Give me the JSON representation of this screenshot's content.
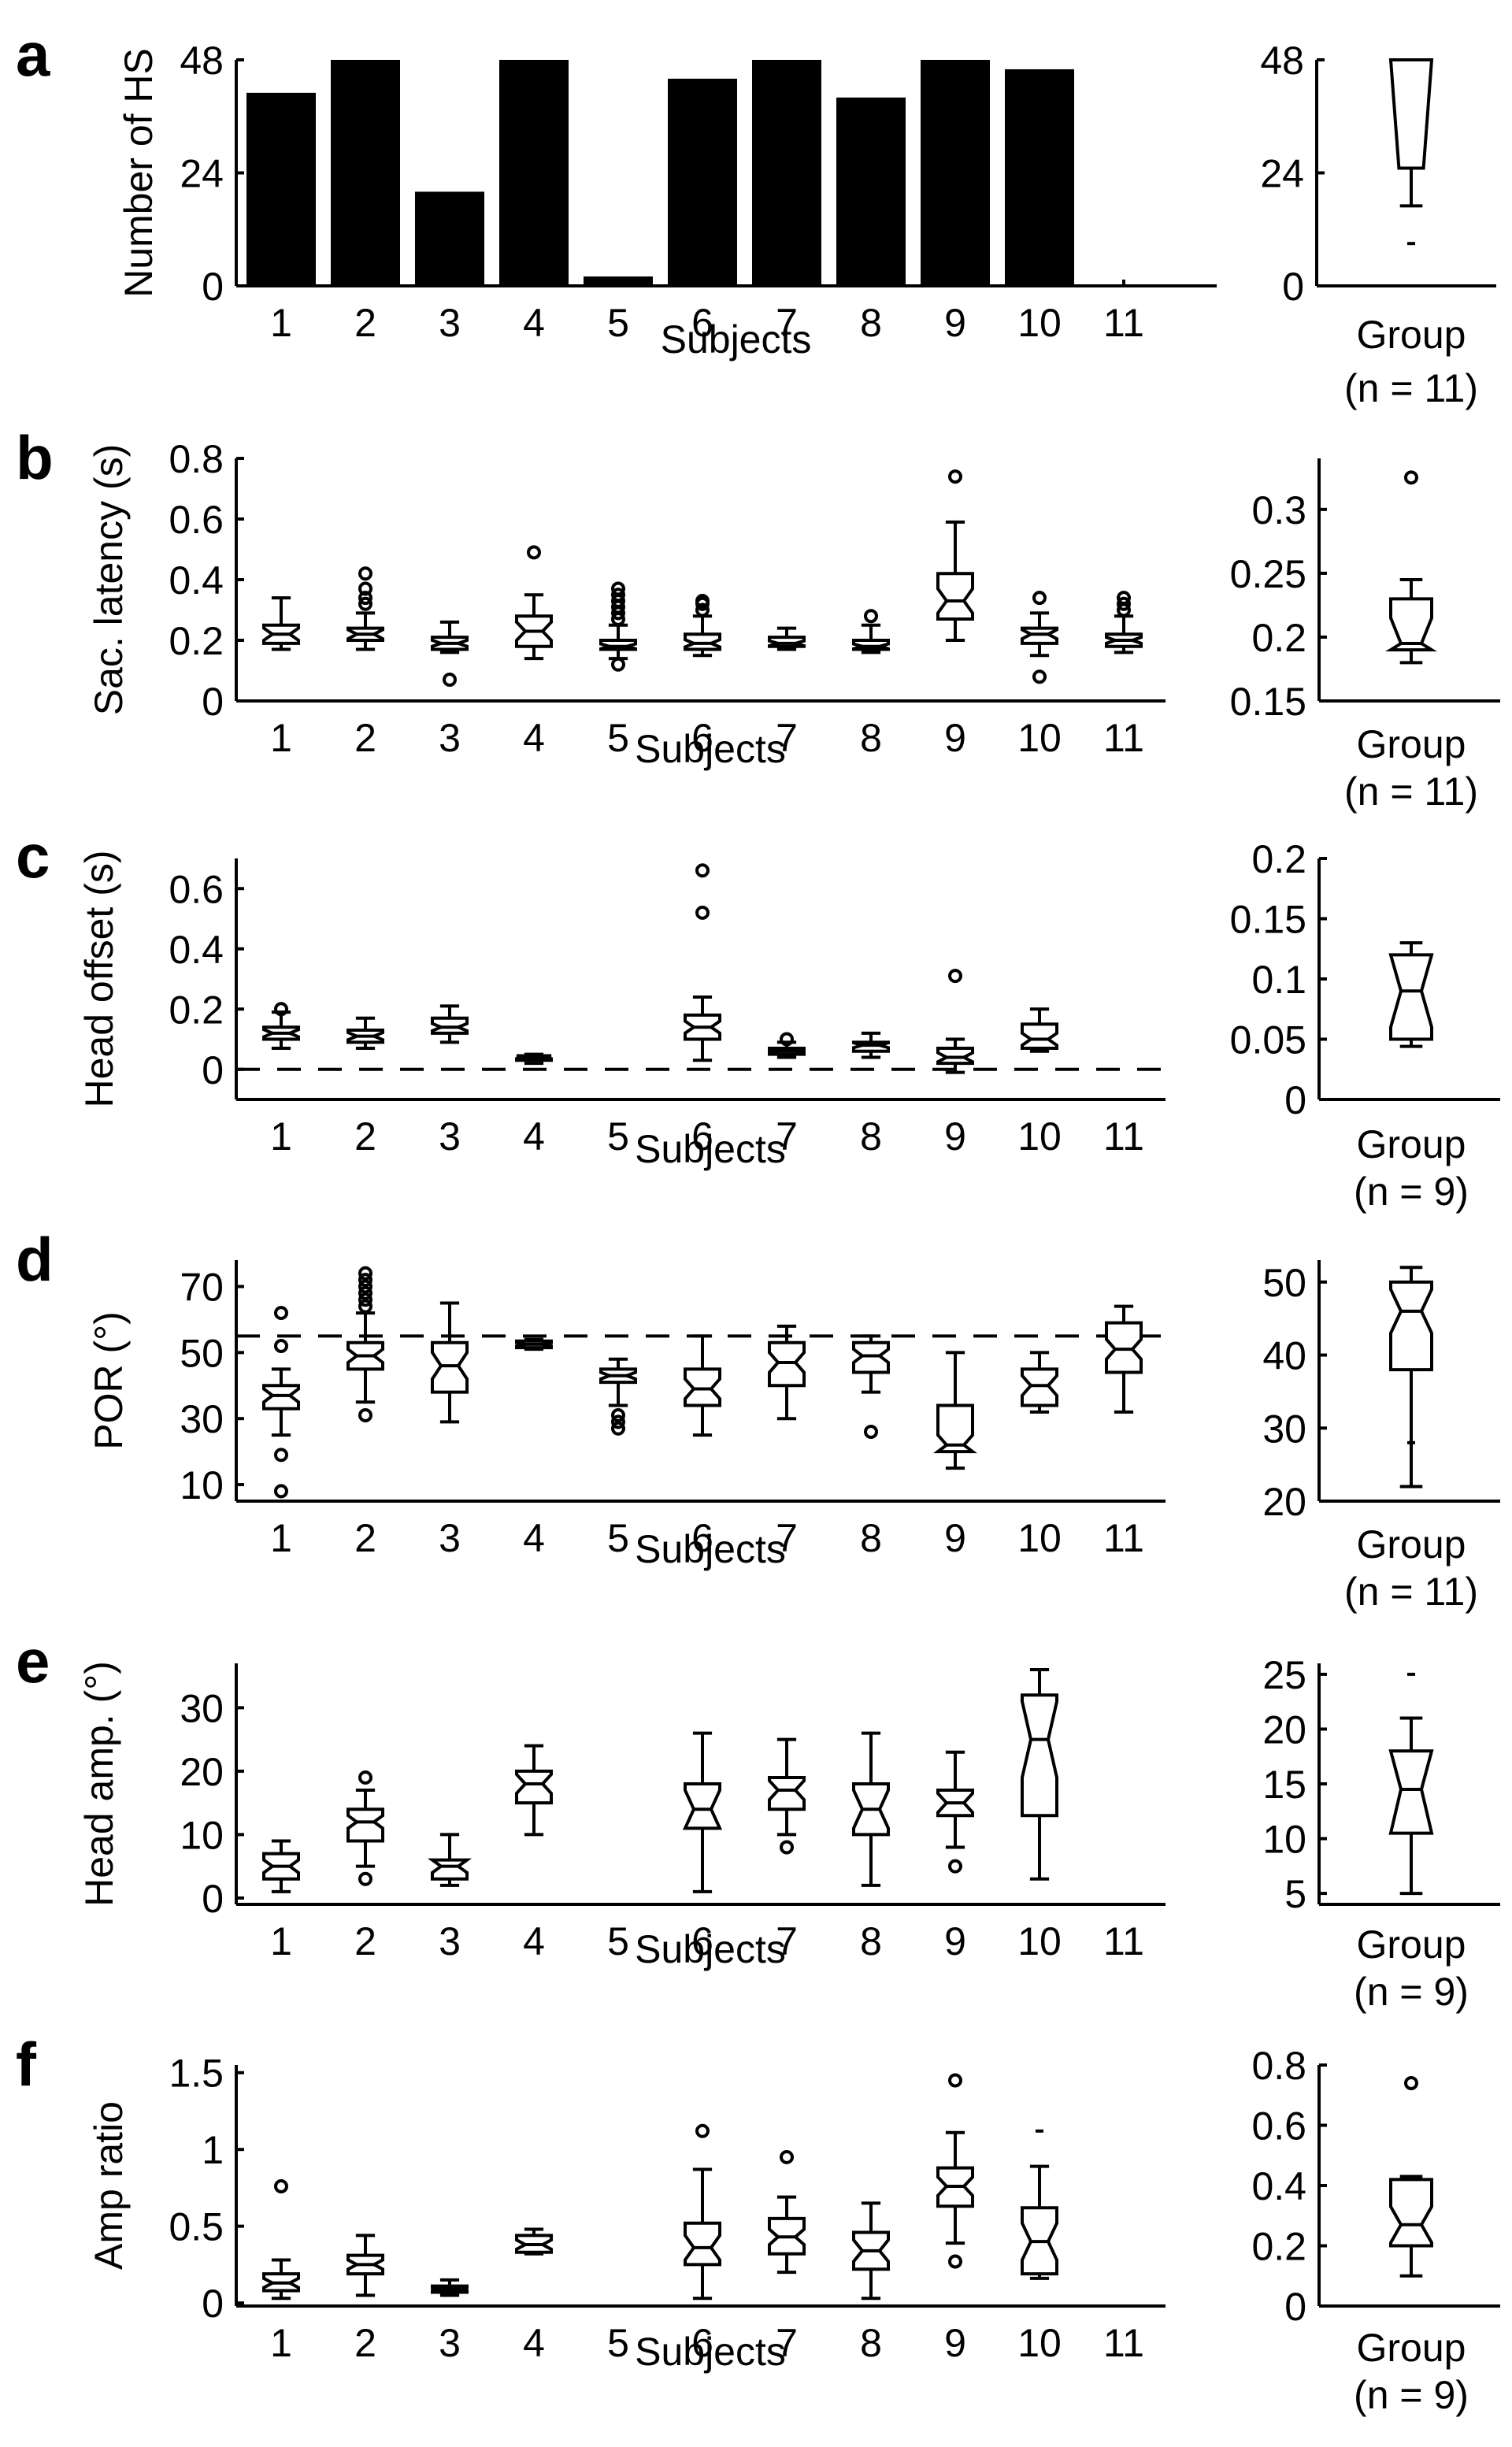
{
  "chart_data": [
    {
      "id": "a",
      "panel_label": "a",
      "type": "bar",
      "ylabel": "Number of HS",
      "xlabel": "Subjects",
      "ylim": [
        0,
        48
      ],
      "yticks": [
        0,
        24,
        48
      ],
      "ytick_labels": [
        "0",
        "24",
        "48"
      ],
      "categories": [
        "1",
        "2",
        "3",
        "4",
        "5",
        "6",
        "7",
        "8",
        "9",
        "10",
        "11"
      ],
      "values": [
        41,
        48,
        20,
        48,
        2,
        44,
        48,
        40,
        48,
        46,
        0
      ],
      "group": {
        "type": "boxplot",
        "xlabel": "Group",
        "n_label": "(n = 11)",
        "ylim": [
          0,
          48
        ],
        "yticks": [
          0,
          24,
          48
        ],
        "ytick_labels": [
          "0",
          "24",
          "48"
        ],
        "notched": false,
        "box": {
          "low": 0,
          "q1": 25,
          "median": 46,
          "q3": 48,
          "high": 48,
          "wlo": 17,
          "whi": 48,
          "outliers": [],
          "minlines": [
            0,
            9
          ]
        }
      }
    },
    {
      "id": "b",
      "panel_label": "b",
      "type": "boxplot",
      "ylabel": "Sac. latency (s)",
      "xlabel": "Subjects",
      "ylim": [
        0,
        0.8
      ],
      "yticks": [
        0,
        0.2,
        0.4,
        0.6,
        0.8
      ],
      "ytick_labels": [
        "0",
        "0.2",
        "0.4",
        "0.6",
        "0.8"
      ],
      "categories": [
        "1",
        "2",
        "3",
        "4",
        "5",
        "6",
        "7",
        "8",
        "9",
        "10",
        "11"
      ],
      "boxes": [
        {
          "wlo": 0.17,
          "q1": 0.19,
          "median": 0.22,
          "q3": 0.25,
          "whi": 0.34,
          "notch": 0.02,
          "outliers": []
        },
        {
          "wlo": 0.17,
          "q1": 0.2,
          "median": 0.22,
          "q3": 0.24,
          "whi": 0.29,
          "notch": 0.015,
          "outliers": [
            0.32,
            0.34,
            0.37,
            0.42
          ]
        },
        {
          "wlo": 0.16,
          "q1": 0.17,
          "median": 0.19,
          "q3": 0.21,
          "whi": 0.26,
          "notch": 0.01,
          "outliers": [
            0.07
          ]
        },
        {
          "wlo": 0.14,
          "q1": 0.18,
          "median": 0.23,
          "q3": 0.28,
          "whi": 0.35,
          "notch": 0.03,
          "outliers": [
            0.49
          ]
        },
        {
          "wlo": 0.14,
          "q1": 0.17,
          "median": 0.18,
          "q3": 0.2,
          "whi": 0.25,
          "notch": 0.008,
          "outliers": [
            0.12,
            0.27,
            0.29,
            0.31,
            0.33,
            0.35,
            0.37
          ]
        },
        {
          "wlo": 0.15,
          "q1": 0.17,
          "median": 0.19,
          "q3": 0.22,
          "whi": 0.28,
          "notch": 0.012,
          "outliers": [
            0.3,
            0.32,
            0.33
          ]
        },
        {
          "wlo": 0.17,
          "q1": 0.18,
          "median": 0.19,
          "q3": 0.21,
          "whi": 0.24,
          "notch": 0.008,
          "outliers": []
        },
        {
          "wlo": 0.16,
          "q1": 0.17,
          "median": 0.18,
          "q3": 0.2,
          "whi": 0.25,
          "notch": 0.008,
          "outliers": [
            0.28
          ]
        },
        {
          "wlo": 0.2,
          "q1": 0.27,
          "median": 0.33,
          "q3": 0.42,
          "whi": 0.59,
          "notch": 0.04,
          "outliers": [
            0.74
          ]
        },
        {
          "wlo": 0.15,
          "q1": 0.19,
          "median": 0.22,
          "q3": 0.24,
          "whi": 0.29,
          "notch": 0.015,
          "outliers": [
            0.08,
            0.34
          ]
        },
        {
          "wlo": 0.16,
          "q1": 0.18,
          "median": 0.2,
          "q3": 0.22,
          "whi": 0.28,
          "notch": 0.01,
          "outliers": [
            0.3,
            0.32,
            0.34
          ]
        }
      ],
      "group": {
        "type": "boxplot",
        "xlabel": "Group",
        "n_label": "(n = 11)",
        "ylim": [
          0.15,
          0.34
        ],
        "yticks": [
          0.15,
          0.2,
          0.25,
          0.3
        ],
        "ytick_labels": [
          "0.15",
          "0.2",
          "0.25",
          "0.3"
        ],
        "notched": true,
        "box": {
          "wlo": 0.18,
          "q1": 0.19,
          "median": 0.195,
          "q3": 0.23,
          "whi": 0.245,
          "notch": 0.02,
          "outliers": [
            0.325
          ]
        }
      }
    },
    {
      "id": "c",
      "panel_label": "c",
      "type": "boxplot",
      "ylabel": "Head offset (s)",
      "xlabel": "Subjects",
      "ylim": [
        -0.1,
        0.7
      ],
      "yticks": [
        0,
        0.2,
        0.4,
        0.6
      ],
      "ytick_labels": [
        "0",
        "0.2",
        "0.4",
        "0.6"
      ],
      "reference_line": 0,
      "categories": [
        "1",
        "2",
        "3",
        "4",
        "5",
        "6",
        "7",
        "8",
        "9",
        "10",
        "11"
      ],
      "boxes": [
        {
          "wlo": 0.07,
          "q1": 0.1,
          "median": 0.12,
          "q3": 0.14,
          "whi": 0.19,
          "notch": 0.012,
          "outliers": [
            0.2
          ]
        },
        {
          "wlo": 0.07,
          "q1": 0.09,
          "median": 0.11,
          "q3": 0.13,
          "whi": 0.17,
          "notch": 0.012,
          "outliers": []
        },
        {
          "wlo": 0.09,
          "q1": 0.12,
          "median": 0.14,
          "q3": 0.17,
          "whi": 0.21,
          "notch": 0.012,
          "outliers": []
        },
        {
          "wlo": 0.02,
          "q1": 0.03,
          "median": 0.04,
          "q3": 0.045,
          "whi": 0.05,
          "notch": 0.005,
          "outliers": []
        },
        null,
        {
          "wlo": 0.03,
          "q1": 0.1,
          "median": 0.14,
          "q3": 0.18,
          "whi": 0.24,
          "notch": 0.02,
          "outliers": [
            0.52,
            0.66
          ]
        },
        {
          "wlo": 0.04,
          "q1": 0.05,
          "median": 0.06,
          "q3": 0.07,
          "whi": 0.09,
          "notch": 0.005,
          "outliers": [
            0.1
          ]
        },
        {
          "wlo": 0.04,
          "q1": 0.06,
          "median": 0.08,
          "q3": 0.09,
          "whi": 0.12,
          "notch": 0.008,
          "outliers": []
        },
        {
          "wlo": -0.01,
          "q1": 0.02,
          "median": 0.04,
          "q3": 0.07,
          "whi": 0.1,
          "notch": 0.015,
          "outliers": [
            0.31
          ]
        },
        {
          "wlo": 0.06,
          "q1": 0.07,
          "median": 0.1,
          "q3": 0.15,
          "whi": 0.2,
          "notch": 0.02,
          "outliers": []
        },
        null
      ],
      "group": {
        "type": "boxplot",
        "xlabel": "Group",
        "n_label": "(n = 9)",
        "ylim": [
          0,
          0.2
        ],
        "yticks": [
          0,
          0.05,
          0.1,
          0.15,
          0.2
        ],
        "ytick_labels": [
          "0",
          "0.05",
          "0.1",
          "0.15",
          "0.2"
        ],
        "notched": true,
        "box": {
          "wlo": 0.044,
          "q1": 0.05,
          "median": 0.09,
          "q3": 0.12,
          "whi": 0.13,
          "notch": 0.03,
          "outliers": []
        }
      }
    },
    {
      "id": "d",
      "panel_label": "d",
      "type": "boxplot",
      "ylabel": "POR (°)",
      "xlabel": "Subjects",
      "ylim": [
        5,
        78
      ],
      "yticks": [
        10,
        30,
        50,
        70
      ],
      "ytick_labels": [
        "10",
        "30",
        "50",
        "70"
      ],
      "reference_line": 55,
      "categories": [
        "1",
        "2",
        "3",
        "4",
        "5",
        "6",
        "7",
        "8",
        "9",
        "10",
        "11"
      ],
      "boxes": [
        {
          "wlo": 25,
          "q1": 33,
          "median": 37,
          "q3": 40,
          "whi": 45,
          "notch": 2,
          "outliers": [
            8,
            19,
            52,
            62
          ]
        },
        {
          "wlo": 35,
          "q1": 45,
          "median": 49,
          "q3": 53,
          "whi": 62,
          "notch": 2,
          "outliers": [
            31,
            64,
            66,
            68,
            70,
            72,
            74
          ]
        },
        {
          "wlo": 29,
          "q1": 38,
          "median": 46,
          "q3": 53,
          "whi": 65,
          "notch": 4,
          "outliers": []
        },
        {
          "wlo": 51,
          "q1": 51.5,
          "median": 52.5,
          "q3": 53.5,
          "whi": 54,
          "notch": 0.5,
          "outliers": []
        },
        {
          "wlo": 34,
          "q1": 41,
          "median": 43,
          "q3": 45,
          "whi": 48,
          "notch": 1,
          "outliers": [
            27,
            29,
            31
          ]
        },
        {
          "wlo": 25,
          "q1": 34,
          "median": 39,
          "q3": 45,
          "whi": 55,
          "notch": 3,
          "outliers": []
        },
        {
          "wlo": 30,
          "q1": 40,
          "median": 47,
          "q3": 53,
          "whi": 58,
          "notch": 3,
          "outliers": []
        },
        {
          "wlo": 38,
          "q1": 44,
          "median": 49,
          "q3": 53,
          "whi": 55,
          "notch": 2,
          "outliers": [
            26
          ]
        },
        {
          "wlo": 15,
          "q1": 20,
          "median": 22,
          "q3": 34,
          "whi": 50,
          "notch": 3,
          "outliers": []
        },
        {
          "wlo": 32,
          "q1": 34,
          "median": 40,
          "q3": 45,
          "whi": 50,
          "notch": 3,
          "outliers": []
        },
        {
          "wlo": 32,
          "q1": 44,
          "median": 51,
          "q3": 59,
          "whi": 64,
          "notch": 3,
          "outliers": []
        }
      ],
      "group": {
        "type": "boxplot",
        "xlabel": "Group",
        "n_label": "(n = 11)",
        "ylim": [
          20,
          53
        ],
        "yticks": [
          20,
          30,
          40,
          50
        ],
        "ytick_labels": [
          "20",
          "30",
          "40",
          "50"
        ],
        "notched": true,
        "box": {
          "wlo": 22,
          "q1": 38,
          "median": 46,
          "q3": 50,
          "whi": 52,
          "notch": 3,
          "outliers": [],
          "minlines": [
            22,
            28
          ]
        }
      }
    },
    {
      "id": "e",
      "panel_label": "e",
      "type": "boxplot",
      "ylabel": "Head amp. (°)",
      "xlabel": "Subjects",
      "ylim": [
        -1,
        37
      ],
      "yticks": [
        0,
        10,
        20,
        30
      ],
      "ytick_labels": [
        "0",
        "10",
        "20",
        "30"
      ],
      "categories": [
        "1",
        "2",
        "3",
        "4",
        "5",
        "6",
        "7",
        "8",
        "9",
        "10",
        "11"
      ],
      "boxes": [
        {
          "wlo": 1,
          "q1": 3,
          "median": 5,
          "q3": 7,
          "whi": 9,
          "notch": 1,
          "outliers": []
        },
        {
          "wlo": 5,
          "q1": 9,
          "median": 12,
          "q3": 14,
          "whi": 17,
          "notch": 1,
          "outliers": [
            3,
            19
          ]
        },
        {
          "wlo": 2,
          "q1": 3,
          "median": 5,
          "q3": 6,
          "whi": 10,
          "notch": 1,
          "outliers": []
        },
        {
          "wlo": 10,
          "q1": 15,
          "median": 18,
          "q3": 20,
          "whi": 24,
          "notch": 1.5,
          "outliers": []
        },
        null,
        {
          "wlo": 1,
          "q1": 11,
          "median": 14,
          "q3": 18,
          "whi": 26,
          "notch": 3,
          "outliers": []
        },
        {
          "wlo": 10,
          "q1": 14,
          "median": 17,
          "q3": 19,
          "whi": 25,
          "notch": 1.5,
          "outliers": [
            8
          ]
        },
        {
          "wlo": 2,
          "q1": 10,
          "median": 14,
          "q3": 18,
          "whi": 26,
          "notch": 3,
          "outliers": []
        },
        {
          "wlo": 8,
          "q1": 13,
          "median": 15,
          "q3": 17,
          "whi": 23,
          "notch": 1.5,
          "outliers": [
            5
          ]
        },
        {
          "wlo": 3,
          "q1": 13,
          "median": 25,
          "q3": 32,
          "whi": 36,
          "notch": 6,
          "outliers": []
        },
        null
      ],
      "group": {
        "type": "boxplot",
        "xlabel": "Group",
        "n_label": "(n = 9)",
        "ylim": [
          4,
          26
        ],
        "yticks": [
          5,
          10,
          15,
          20,
          25
        ],
        "ytick_labels": [
          "5",
          "10",
          "15",
          "20",
          "25"
        ],
        "notched": true,
        "box": {
          "wlo": 5,
          "q1": 10.5,
          "median": 14.5,
          "q3": 18,
          "whi": 21,
          "notch": 4,
          "outliers": [],
          "minlines": [
            25
          ]
        }
      }
    },
    {
      "id": "f",
      "panel_label": "f",
      "type": "boxplot",
      "ylabel": "Amp ratio",
      "xlabel": "Subjects",
      "ylim": [
        -0.02,
        1.55
      ],
      "yticks": [
        0,
        0.5,
        1,
        1.5
      ],
      "ytick_labels": [
        "0",
        "0.5",
        "1",
        "1.5"
      ],
      "categories": [
        "1",
        "2",
        "3",
        "4",
        "5",
        "6",
        "7",
        "8",
        "9",
        "10",
        "11"
      ],
      "boxes": [
        {
          "wlo": 0.03,
          "q1": 0.08,
          "median": 0.13,
          "q3": 0.19,
          "whi": 0.28,
          "notch": 0.03,
          "outliers": [
            0.76
          ]
        },
        {
          "wlo": 0.05,
          "q1": 0.19,
          "median": 0.25,
          "q3": 0.31,
          "whi": 0.44,
          "notch": 0.03,
          "outliers": []
        },
        {
          "wlo": 0.05,
          "q1": 0.07,
          "median": 0.09,
          "q3": 0.11,
          "whi": 0.15,
          "notch": 0.01,
          "outliers": []
        },
        {
          "wlo": 0.32,
          "q1": 0.33,
          "median": 0.38,
          "q3": 0.44,
          "whi": 0.48,
          "notch": 0.03,
          "outliers": []
        },
        null,
        {
          "wlo": 0.03,
          "q1": 0.25,
          "median": 0.36,
          "q3": 0.52,
          "whi": 0.87,
          "notch": 0.08,
          "outliers": [
            1.12
          ]
        },
        {
          "wlo": 0.2,
          "q1": 0.32,
          "median": 0.43,
          "q3": 0.55,
          "whi": 0.69,
          "notch": 0.05,
          "outliers": [
            0.95
          ]
        },
        {
          "wlo": 0.03,
          "q1": 0.22,
          "median": 0.34,
          "q3": 0.46,
          "whi": 0.65,
          "notch": 0.07,
          "outliers": []
        },
        {
          "wlo": 0.39,
          "q1": 0.63,
          "median": 0.76,
          "q3": 0.88,
          "whi": 1.11,
          "notch": 0.06,
          "outliers": [
            0.27,
            1.45
          ]
        },
        {
          "wlo": 0.16,
          "q1": 0.19,
          "median": 0.4,
          "q3": 0.62,
          "whi": 0.89,
          "notch": 0.12,
          "outliers": [],
          "minlines": [
            1.12
          ]
        },
        null
      ],
      "group": {
        "type": "boxplot",
        "xlabel": "Group",
        "n_label": "(n = 9)",
        "ylim": [
          0,
          0.8
        ],
        "yticks": [
          0,
          0.2,
          0.4,
          0.6,
          0.8
        ],
        "ytick_labels": [
          "0",
          "0.2",
          "0.4",
          "0.6",
          "0.8"
        ],
        "notched": true,
        "box": {
          "wlo": 0.1,
          "q1": 0.2,
          "median": 0.27,
          "q3": 0.42,
          "whi": 0.43,
          "notch": 0.06,
          "outliers": [
            0.74
          ]
        }
      }
    }
  ]
}
